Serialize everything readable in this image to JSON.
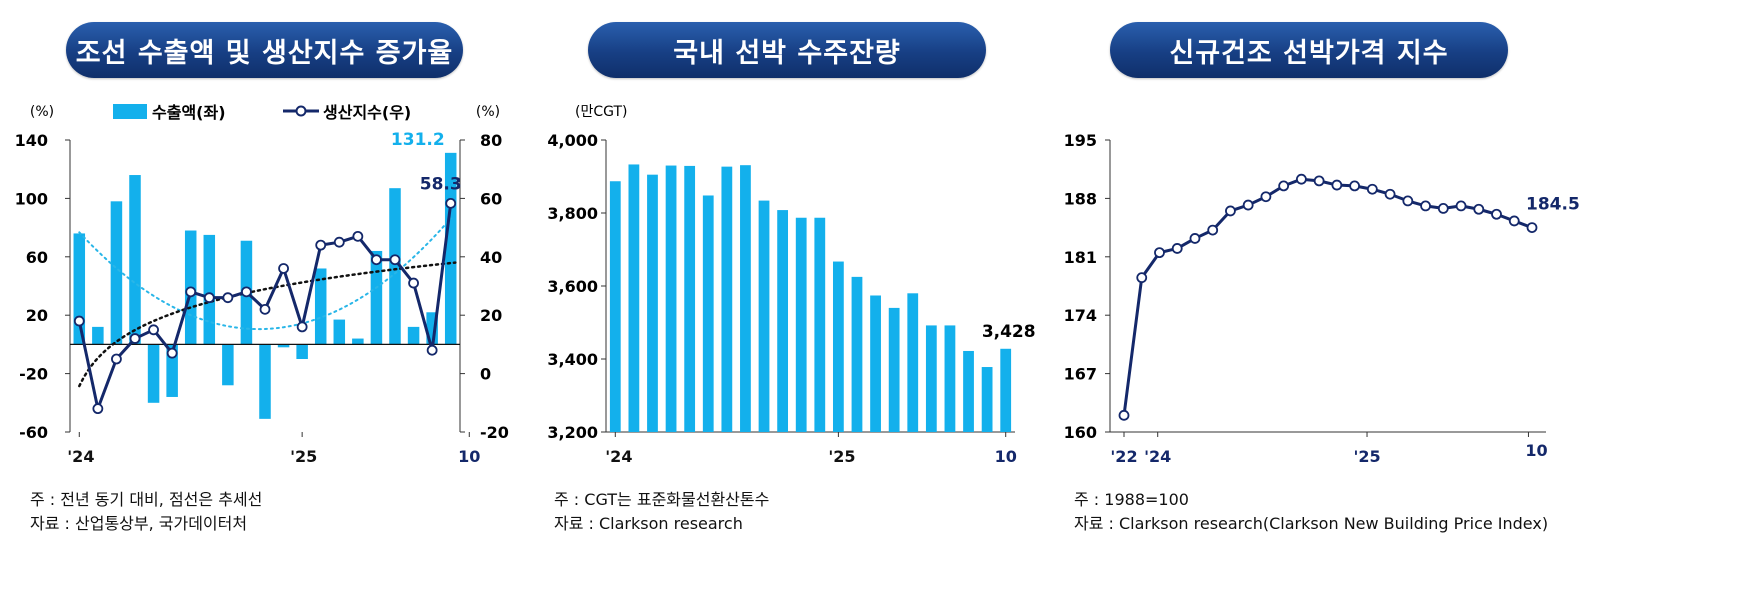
{
  "colors": {
    "bar": "#13b0ec",
    "line": "#14286a",
    "trend_bar": "#29b6e8",
    "trend_line": "#111111",
    "title_bg": "#173f84",
    "label_cyan": "#13b0ec",
    "label_navy": "#14286a"
  },
  "panels": [
    {
      "title": "조선 수출액 및 생산지수 증가율",
      "legend_bar": "수출액(좌)",
      "legend_line": "생산지수(우)",
      "note_lines": [
        "주 : 전년 동기 대비, 점선은 추세선",
        "자료 : 산업통상부, 국가데이터처"
      ]
    },
    {
      "title": "국내 선박 수주잔량",
      "note_lines": [
        "주 : CGT는 표준화물선환산톤수",
        "자료 : Clarkson research"
      ]
    },
    {
      "title": "신규건조 선박가격 지수",
      "note_lines": [
        "주 : 1988=100",
        "자료 : Clarkson research(Clarkson New Building Price Index)"
      ]
    }
  ],
  "chart_data": [
    {
      "type": "bar",
      "title": "조선 수출액 및 생산지수 증가율",
      "left_unit": "(%)",
      "right_unit": "(%)",
      "left_ylim": [
        -60,
        140
      ],
      "left_ticks": [
        "140",
        "100",
        "60",
        "20",
        "-20",
        "-60"
      ],
      "left_tick_values": [
        140,
        100,
        60,
        20,
        -20,
        -60
      ],
      "right_ylim": [
        -20,
        80
      ],
      "right_ticks": [
        "80",
        "60",
        "40",
        "20",
        "0",
        "-20"
      ],
      "right_tick_values": [
        80,
        60,
        40,
        20,
        0,
        -20
      ],
      "x_tick_labels": [
        {
          "label": "'24",
          "index": 0
        },
        {
          "label": "'25",
          "index": 12
        },
        {
          "label": "10",
          "index": 21
        }
      ],
      "series": [
        {
          "name": "수출액(좌)",
          "axis": "left",
          "type": "bar",
          "values": [
            76,
            12,
            98,
            116,
            -40,
            -36,
            78,
            75,
            -28,
            71,
            -51,
            -2,
            -10,
            52,
            17,
            4,
            64,
            107,
            12,
            22,
            131.2
          ]
        },
        {
          "name": "생산지수(우)",
          "axis": "right",
          "type": "line",
          "values": [
            18,
            -12,
            5,
            12,
            15,
            7,
            28,
            26,
            26,
            28,
            22,
            36,
            16,
            44,
            45,
            47,
            39,
            39,
            31,
            8,
            58.3
          ]
        }
      ],
      "data_labels": [
        {
          "text": "131.2",
          "series": 0,
          "index": 20
        },
        {
          "text": "58.3",
          "series": 1,
          "index": 20
        }
      ]
    },
    {
      "type": "bar",
      "title": "국내 선박 수주잔량",
      "unit": "(만CGT)",
      "ylim": [
        3200,
        4000
      ],
      "y_ticks": [
        "4,000",
        "3,800",
        "3,600",
        "3,400",
        "3,200"
      ],
      "y_tick_values": [
        4000,
        3800,
        3600,
        3400,
        3200
      ],
      "x_tick_labels": [
        {
          "label": "'24",
          "index": 0
        },
        {
          "label": "'25",
          "index": 12
        },
        {
          "label": "10",
          "index": 21
        }
      ],
      "values": [
        3887,
        3933,
        3905,
        3930,
        3929,
        3848,
        3927,
        3931,
        3834,
        3808,
        3787,
        3787,
        3667,
        3625,
        3574,
        3540,
        3580,
        3492,
        3492,
        3422,
        3378,
        3428
      ],
      "data_labels": [
        {
          "text": "3,428",
          "index": 21
        }
      ]
    },
    {
      "type": "line",
      "title": "신규건조 선박가격 지수",
      "ylim": [
        160,
        195
      ],
      "y_ticks": [
        "195",
        "188",
        "181",
        "174",
        "167",
        "160"
      ],
      "y_tick_values": [
        195,
        188,
        181,
        174,
        167,
        160
      ],
      "x_tick_labels": [
        {
          "label": "'22",
          "index": 0
        },
        {
          "label": "'24",
          "index": 1.9
        },
        {
          "label": "'25",
          "index": 13.7
        },
        {
          "label": "10",
          "index": 22.8
        }
      ],
      "values": [
        162,
        178.5,
        181.5,
        182,
        183.2,
        184.2,
        186.5,
        187.2,
        188.2,
        189.5,
        190.3,
        190.1,
        189.6,
        189.5,
        189.1,
        188.5,
        187.7,
        187.1,
        186.8,
        187.1,
        186.7,
        186.1,
        185.3,
        184.5
      ],
      "data_labels": [
        {
          "text": "184.5",
          "index": 23
        }
      ]
    }
  ]
}
